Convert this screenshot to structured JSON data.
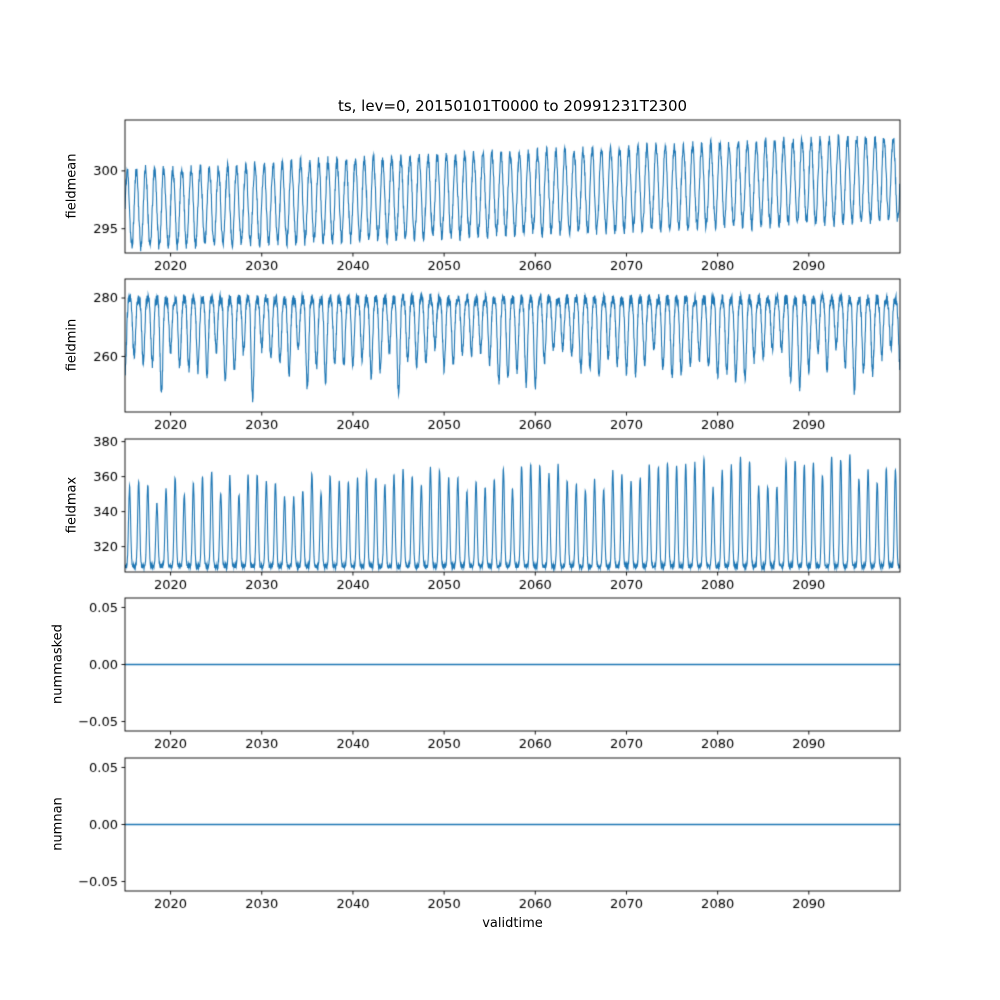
{
  "figure": {
    "title": "ts, lev=0, 20150101T0000 to 20991231T2300",
    "xlabel": "validtime",
    "background": "#ffffff",
    "line_color": "#1f77b4",
    "text_color": "#000000"
  },
  "chart_data": [
    {
      "type": "line",
      "name": "fieldmean",
      "ylabel": "fieldmean",
      "xlim": [
        2015,
        2100
      ],
      "ylim": [
        292.9,
        304.4
      ],
      "xticks": [
        2020,
        2030,
        2040,
        2050,
        2060,
        2070,
        2080,
        2090
      ],
      "xtick_labels": [
        "2020",
        "2030",
        "2040",
        "2050",
        "2060",
        "2070",
        "2080",
        "2090"
      ],
      "yticks": [
        295,
        300
      ],
      "ytick_labels": [
        "295",
        "300"
      ],
      "grid": false,
      "model": {
        "shape": "sine",
        "base": 296.7,
        "trend_per_year": 0.0318,
        "amp": 3.3,
        "amp_trend_per_year": 0.003,
        "noise": 0.5,
        "points_per_year": 36,
        "seed": 11
      },
      "description": "Annual oscillation between ~293.5 and ~300 in 2015, rising to ~296-303.3 by 2099"
    },
    {
      "type": "line",
      "name": "fieldmin",
      "ylabel": "fieldmin",
      "xlim": [
        2015,
        2100
      ],
      "ylim": [
        241,
        286.5
      ],
      "xticks": [
        2020,
        2030,
        2040,
        2050,
        2060,
        2070,
        2080,
        2090
      ],
      "xtick_labels": [
        "2020",
        "2030",
        "2040",
        "2050",
        "2060",
        "2070",
        "2080",
        "2090"
      ],
      "yticks": [
        260,
        280
      ],
      "ytick_labels": [
        "260",
        "280"
      ],
      "grid": false,
      "model": {
        "shape": "dip",
        "top": 279.5,
        "dip_mean": 23,
        "dip_var": 7,
        "deep_prob": 0.12,
        "deep_extra": 10,
        "exponent": 2,
        "noise": 1.8,
        "points_per_year": 48,
        "seed": 22
      },
      "description": "Dense band ~255-283 with occasional winter dips down to ~245"
    },
    {
      "type": "line",
      "name": "fieldmax",
      "ylabel": "fieldmax",
      "xlim": [
        2015,
        2100
      ],
      "ylim": [
        305.5,
        381.5
      ],
      "xticks": [
        2020,
        2030,
        2040,
        2050,
        2060,
        2070,
        2080,
        2090
      ],
      "xtick_labels": [
        "2020",
        "2030",
        "2040",
        "2050",
        "2060",
        "2070",
        "2080",
        "2090"
      ],
      "yticks": [
        320,
        340,
        360,
        380
      ],
      "ytick_labels": [
        "320",
        "340",
        "360",
        "380"
      ],
      "grid": false,
      "model": {
        "shape": "peak",
        "base": 308.8,
        "peak_mean": 44,
        "peak_var": 9,
        "peak_trend_per_year": 0.14,
        "exponent": 4,
        "noise": 1.1,
        "points_per_year": 48,
        "seed": 33
      },
      "description": "Flat baseline ~308-310 with yearly summer peaks ~345-360 rising to ~355-378"
    },
    {
      "type": "line",
      "name": "nummasked",
      "ylabel": "nummasked",
      "xlim": [
        2015,
        2100
      ],
      "ylim": [
        -0.0583,
        0.0583
      ],
      "xticks": [
        2020,
        2030,
        2040,
        2050,
        2060,
        2070,
        2080,
        2090
      ],
      "xtick_labels": [
        "2020",
        "2030",
        "2040",
        "2050",
        "2060",
        "2070",
        "2080",
        "2090"
      ],
      "yticks": [
        -0.05,
        0,
        0.05
      ],
      "ytick_labels": [
        "−0.05",
        "0.00",
        "0.05"
      ],
      "grid": false,
      "model": {
        "shape": "constant",
        "value": 0
      },
      "description": "Constant zero line"
    },
    {
      "type": "line",
      "name": "numnan",
      "ylabel": "numnan",
      "xlim": [
        2015,
        2100
      ],
      "ylim": [
        -0.0583,
        0.0583
      ],
      "xticks": [
        2020,
        2030,
        2040,
        2050,
        2060,
        2070,
        2080,
        2090
      ],
      "xtick_labels": [
        "2020",
        "2030",
        "2040",
        "2050",
        "2060",
        "2070",
        "2080",
        "2090"
      ],
      "yticks": [
        -0.05,
        0,
        0.05
      ],
      "ytick_labels": [
        "−0.05",
        "0.00",
        "0.05"
      ],
      "grid": false,
      "model": {
        "shape": "constant",
        "value": 0
      },
      "description": "Constant zero line"
    }
  ]
}
